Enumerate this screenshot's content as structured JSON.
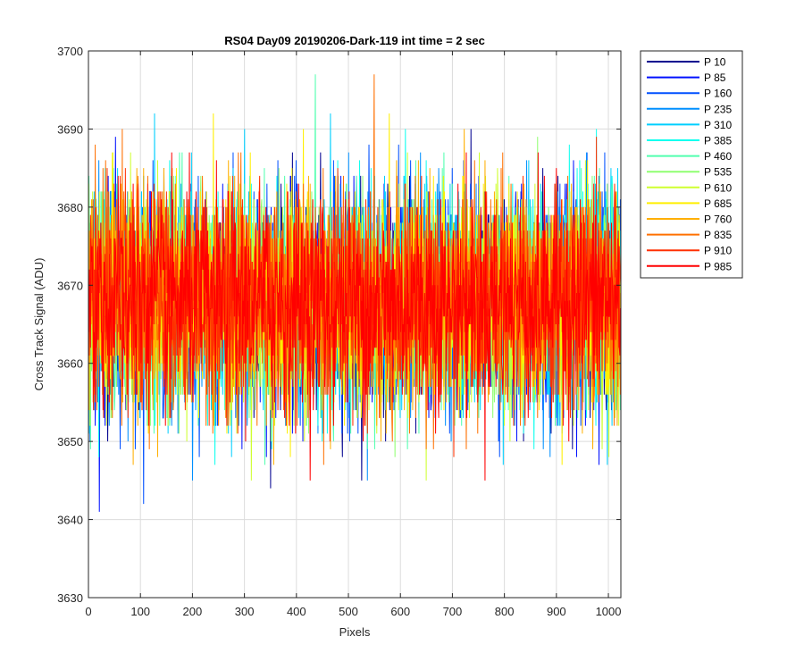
{
  "chart_data": {
    "type": "line",
    "title": "RS04 Day09 20190206-Dark-119 int time = 2 sec",
    "xlabel": "Pixels",
    "ylabel": "Cross Track Signal (ADU)",
    "xlim": [
      0,
      1024
    ],
    "ylim": [
      3630,
      3700
    ],
    "xticks": [
      0,
      100,
      200,
      300,
      400,
      500,
      600,
      700,
      800,
      900,
      1000
    ],
    "yticks": [
      3630,
      3640,
      3650,
      3660,
      3670,
      3680,
      3690,
      3700
    ],
    "grid": true,
    "legend_position": "outside-top-right",
    "series_summary": {
      "points_per_series": 1024,
      "center": 3668,
      "typical_range": [
        3652,
        3686
      ],
      "observed_min": 3639,
      "observed_max": 3698
    },
    "series": [
      {
        "name": "P 10",
        "color": "#00008f"
      },
      {
        "name": "P 85",
        "color": "#0010ff"
      },
      {
        "name": "P 160",
        "color": "#0050ff"
      },
      {
        "name": "P 235",
        "color": "#008fff"
      },
      {
        "name": "P 310",
        "color": "#00cfff"
      },
      {
        "name": "P 385",
        "color": "#10ffef"
      },
      {
        "name": "P 460",
        "color": "#50ffaf"
      },
      {
        "name": "P 535",
        "color": "#8fff70"
      },
      {
        "name": "P 610",
        "color": "#cfff30"
      },
      {
        "name": "P 685",
        "color": "#ffef00"
      },
      {
        "name": "P 760",
        "color": "#ffaf00"
      },
      {
        "name": "P 835",
        "color": "#ff7000"
      },
      {
        "name": "P 910",
        "color": "#ff3000"
      },
      {
        "name": "P 985",
        "color": "#ff0000"
      }
    ]
  }
}
